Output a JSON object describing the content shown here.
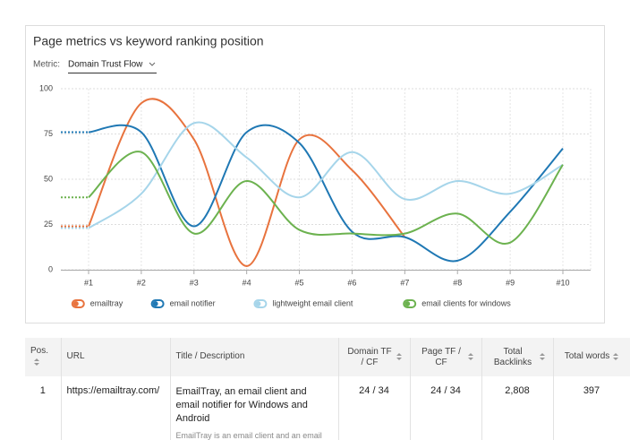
{
  "header": {
    "title": "Page metrics vs keyword ranking position",
    "metric_label": "Metric:",
    "metric_value": "Domain Trust Flow"
  },
  "chart_data": {
    "type": "line",
    "categories": [
      "#1",
      "#2",
      "#3",
      "#4",
      "#5",
      "#6",
      "#7",
      "#8",
      "#9",
      "#10"
    ],
    "ylim": [
      0,
      100
    ],
    "yticks": [
      0,
      25,
      50,
      75,
      100
    ],
    "grid": true,
    "smooth": true,
    "legend": "bottom",
    "series": [
      {
        "name": "emailtray",
        "color": "#e8733e",
        "values": [
          24,
          92,
          72,
          2,
          72,
          55,
          18,
          null,
          null,
          null
        ]
      },
      {
        "name": "email notifier",
        "color": "#1f78b4",
        "values": [
          76,
          76,
          24,
          76,
          70,
          21,
          18,
          5,
          32,
          67
        ]
      },
      {
        "name": "lightweight email client",
        "color": "#a6d5ea",
        "values": [
          23,
          42,
          81,
          62,
          40,
          65,
          39,
          49,
          42,
          58
        ]
      },
      {
        "name": "email clients for windows",
        "color": "#6cb24f",
        "values": [
          40,
          65,
          20,
          49,
          22,
          20,
          20,
          31,
          15,
          58
        ]
      }
    ]
  },
  "table": {
    "columns": [
      "Pos.",
      "URL",
      "Title / Description",
      "Domain TF / CF",
      "Page TF / CF",
      "Total Backlinks",
      "Total words"
    ],
    "rows": [
      [
        "1",
        "https://emailtray.com/",
        "EmailTray, an email client and email notifier for Windows and Android",
        "24 / 34",
        "24 / 34",
        "2,808",
        "397"
      ]
    ],
    "descriptions": [
      "EmailTray is an email client and an email"
    ]
  }
}
